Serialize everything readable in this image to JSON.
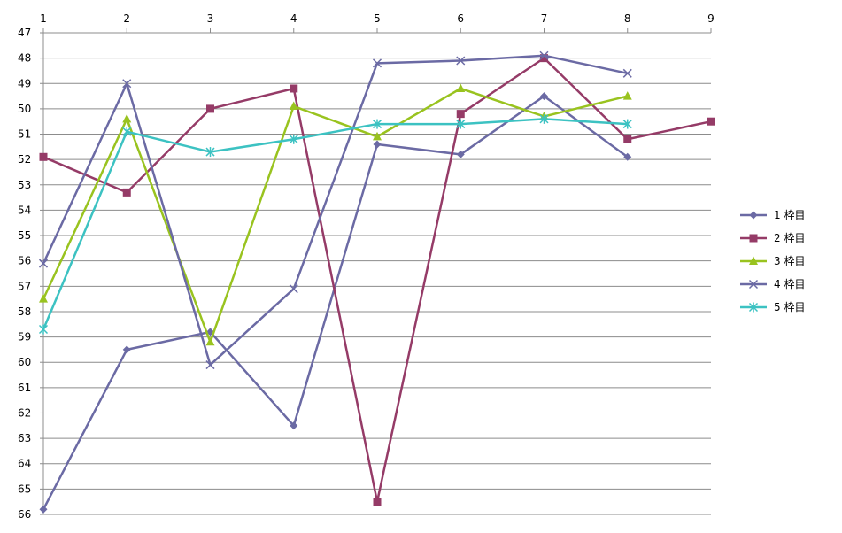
{
  "chart_data": {
    "type": "line",
    "title": "",
    "xlabel": "",
    "ylabel": "",
    "x": [
      1,
      2,
      3,
      4,
      5,
      6,
      7,
      8,
      9
    ],
    "x_tick_labels": [
      "1",
      "2",
      "3",
      "4",
      "5",
      "6",
      "7",
      "8",
      "9"
    ],
    "x_axis_position": "top",
    "y_tick_labels": [
      "47",
      "48",
      "49",
      "50",
      "51",
      "52",
      "53",
      "54",
      "55",
      "56",
      "57",
      "58",
      "59",
      "60",
      "61",
      "62",
      "63",
      "64",
      "65",
      "66"
    ],
    "ylim": [
      47,
      66
    ],
    "y_inverted": true,
    "grid": true,
    "legend_position": "right",
    "series": [
      {
        "name": "1 枠目",
        "color": "#6b6aa4",
        "marker": "diamond",
        "values": [
          65.8,
          59.5,
          58.8,
          62.5,
          51.4,
          51.8,
          49.5,
          51.9,
          null
        ]
      },
      {
        "name": "2 枠目",
        "color": "#953b67",
        "marker": "square",
        "values": [
          51.9,
          53.3,
          50.0,
          49.2,
          65.5,
          50.2,
          48.0,
          51.2,
          50.5
        ]
      },
      {
        "name": "3 枠目",
        "color": "#99c31f",
        "marker": "triangle",
        "values": [
          57.5,
          50.4,
          59.2,
          49.9,
          51.1,
          49.2,
          50.3,
          49.5,
          null
        ]
      },
      {
        "name": "4 枠目",
        "color": "#6b6aa4",
        "marker": "x",
        "values": [
          56.1,
          49.0,
          60.1,
          57.1,
          48.2,
          48.1,
          47.9,
          48.6,
          null
        ]
      },
      {
        "name": "5 枠目",
        "color": "#3cc2c2",
        "marker": "star",
        "values": [
          58.7,
          50.9,
          51.7,
          51.2,
          50.6,
          50.6,
          50.4,
          50.6,
          null
        ]
      }
    ]
  }
}
